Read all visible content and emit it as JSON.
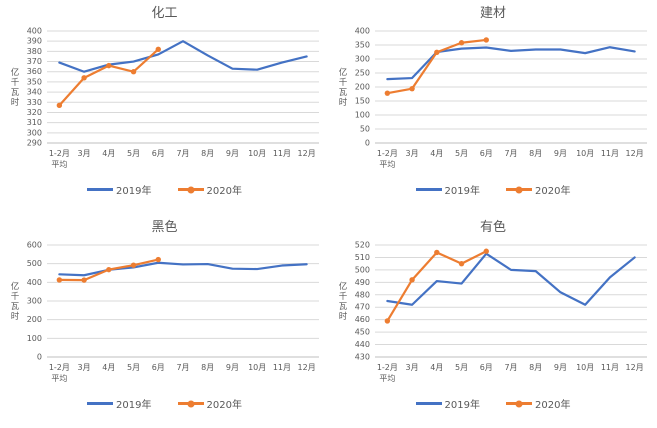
{
  "page": {
    "background": "#FFFFFF",
    "grid_color": "#D9D9D9",
    "axis_color": "#BFBFBF",
    "text_color": "#595959"
  },
  "chart_data": [
    {
      "type": "line",
      "title": "化工",
      "ylabel": "亿千瓦时",
      "categories": [
        "1-2月",
        "3月",
        "4月",
        "5月",
        "6月",
        "7月",
        "8月",
        "9月",
        "10月",
        "11月",
        "12月"
      ],
      "first_category_line2": "平均",
      "ylim": [
        290,
        400
      ],
      "ystep": 10,
      "grid": true,
      "legend_position": "bottom",
      "series": [
        {
          "name": "2019年",
          "color": "#4472C4",
          "marker": "none",
          "values": [
            369,
            360,
            367,
            370,
            377,
            390,
            376,
            363,
            362,
            369,
            375
          ]
        },
        {
          "name": "2020年",
          "color": "#ED7D31",
          "marker": "circle",
          "values": [
            327,
            354,
            366,
            360,
            382
          ]
        }
      ]
    },
    {
      "type": "line",
      "title": "建材",
      "ylabel": "亿千瓦时",
      "categories": [
        "1-2月",
        "3月",
        "4月",
        "5月",
        "6月",
        "7月",
        "8月",
        "9月",
        "10月",
        "11月",
        "12月"
      ],
      "first_category_line2": "平均",
      "ylim": [
        0,
        400
      ],
      "ystep": 50,
      "grid": true,
      "legend_position": "bottom",
      "series": [
        {
          "name": "2019年",
          "color": "#4472C4",
          "marker": "none",
          "values": [
            228,
            232,
            325,
            337,
            341,
            329,
            334,
            334,
            321,
            342,
            327
          ]
        },
        {
          "name": "2020年",
          "color": "#ED7D31",
          "marker": "circle",
          "values": [
            178,
            194,
            324,
            358,
            368
          ]
        }
      ]
    },
    {
      "type": "line",
      "title": "黑色",
      "ylabel": "亿千瓦时",
      "categories": [
        "1-2月",
        "3月",
        "4月",
        "5月",
        "6月",
        "7月",
        "8月",
        "9月",
        "10月",
        "11月",
        "12月"
      ],
      "first_category_line2": "平均",
      "ylim": [
        0,
        600
      ],
      "ystep": 100,
      "grid": true,
      "legend_position": "bottom",
      "series": [
        {
          "name": "2019年",
          "color": "#4472C4",
          "marker": "none",
          "values": [
            443,
            438,
            467,
            480,
            505,
            496,
            498,
            473,
            471,
            490,
            497
          ]
        },
        {
          "name": "2020年",
          "color": "#ED7D31",
          "marker": "circle",
          "values": [
            413,
            412,
            468,
            492,
            522
          ]
        }
      ]
    },
    {
      "type": "line",
      "title": "有色",
      "ylabel": "亿千瓦时",
      "categories": [
        "1-2月",
        "3月",
        "4月",
        "5月",
        "6月",
        "7月",
        "8月",
        "9月",
        "10月",
        "11月",
        "12月"
      ],
      "first_category_line2": "平均",
      "ylim": [
        430,
        520
      ],
      "ystep": 10,
      "grid": true,
      "legend_position": "bottom",
      "series": [
        {
          "name": "2019年",
          "color": "#4472C4",
          "marker": "none",
          "values": [
            475,
            472,
            491,
            489,
            513,
            500,
            499,
            482,
            472,
            494,
            510
          ]
        },
        {
          "name": "2020年",
          "color": "#ED7D31",
          "marker": "circle",
          "values": [
            459,
            492,
            514,
            505,
            515
          ]
        }
      ]
    }
  ]
}
